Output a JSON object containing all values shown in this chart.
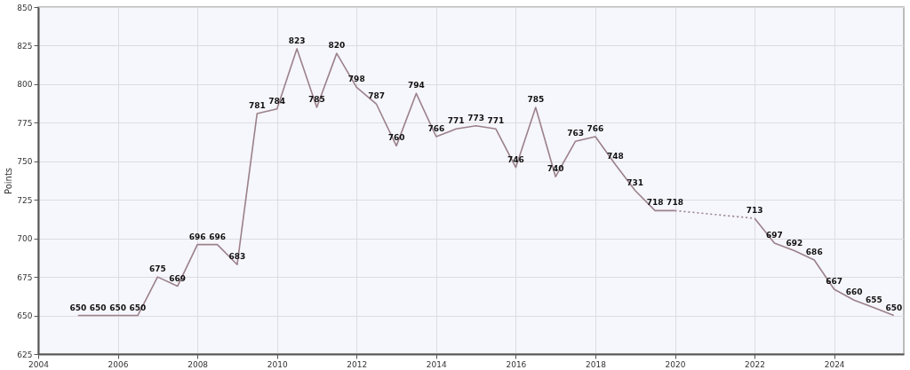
{
  "chart_data": {
    "type": "line",
    "ylabel": "Points",
    "xlim": [
      2004,
      2025.75
    ],
    "xticks": [
      2004,
      2006,
      2008,
      2010,
      2012,
      2014,
      2016,
      2018,
      2020,
      2022,
      2024
    ],
    "ylim": [
      625,
      850
    ],
    "yticks": [
      625,
      650,
      675,
      700,
      725,
      750,
      775,
      800,
      825,
      850
    ],
    "grid": true,
    "data_labels": true,
    "marker": "none",
    "series": [
      {
        "color": "#9b8189",
        "line_style": "solid",
        "x": [
          2005,
          2005.5,
          2006,
          2006.5,
          2007,
          2007.5,
          2008,
          2008.5,
          2009,
          2009.5,
          2010,
          2010.5,
          2011,
          2011.5,
          2012,
          2012.5,
          2013,
          2013.5,
          2014,
          2014.5,
          2015,
          2015.5,
          2016,
          2016.5,
          2017,
          2017.5,
          2018,
          2018.5,
          2019,
          2019.5,
          2020
        ],
        "values": [
          650,
          650,
          650,
          650,
          675,
          669,
          696,
          696,
          683,
          781,
          784,
          823,
          785,
          820,
          798,
          787,
          760,
          794,
          766,
          771,
          773,
          771,
          746,
          785,
          740,
          763,
          766,
          748,
          731,
          718,
          718
        ]
      },
      {
        "color": "#9b8189",
        "line_style": "dotted",
        "x": [
          2020,
          2022
        ],
        "values": [
          718,
          713
        ],
        "value_labels": [
          null,
          null
        ]
      },
      {
        "color": "#9b8189",
        "line_style": "solid",
        "x": [
          2022,
          2022.5,
          2023,
          2023.5,
          2024,
          2024.5,
          2025,
          2025.5
        ],
        "values": [
          713,
          697,
          692,
          686,
          667,
          660,
          655,
          650
        ]
      }
    ]
  }
}
